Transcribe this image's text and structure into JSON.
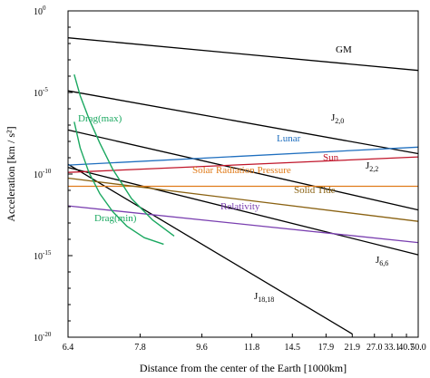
{
  "chart_data": {
    "type": "line",
    "x_scale": "reciprocal",
    "y_scale": "log",
    "xlabel": "Distance from the center of the Earth [1000km]",
    "ylabel": "Acceleration [km / s²]",
    "xlim": [
      6.4,
      50.0
    ],
    "ylim_exponent": [
      -20,
      0
    ],
    "x_ticks": [
      "6.4",
      "7.8",
      "9.6",
      "11.8",
      "14.5",
      "17.9",
      "21.9",
      "27.0",
      "33.1",
      "40.7",
      "50.0"
    ],
    "y_ticks": [
      {
        "exp": 0,
        "base": "10",
        "sup": "0"
      },
      {
        "exp": -5,
        "base": "10",
        "sup": "-5"
      },
      {
        "exp": -10,
        "base": "10",
        "sup": "-10"
      },
      {
        "exp": -15,
        "base": "10",
        "sup": "-15"
      },
      {
        "exp": -20,
        "base": "10",
        "sup": "-20"
      }
    ],
    "grid": false,
    "series": [
      {
        "name": "GM",
        "label": "GM",
        "color": "#000000",
        "x": [
          6.4,
          50.0
        ],
        "y_exp": [
          -1.65,
          -3.65
        ]
      },
      {
        "name": "J2,0",
        "label": "J",
        "sub": "2,0",
        "color": "#000000",
        "x": [
          6.4,
          50.0
        ],
        "y_exp": [
          -4.9,
          -8.75
        ]
      },
      {
        "name": "J2,2",
        "label": "J",
        "sub": "2,2",
        "color": "#000000",
        "x": [
          6.4,
          50.0
        ],
        "y_exp": [
          -7.3,
          -12.2
        ]
      },
      {
        "name": "J6,6",
        "label": "J",
        "sub": "6,6",
        "color": "#000000",
        "x": [
          6.4,
          50.0
        ],
        "y_exp": [
          -9.6,
          -14.95
        ]
      },
      {
        "name": "J18,18",
        "label": "J",
        "sub": "18,18",
        "color": "#000000",
        "x": [
          6.4,
          21.9
        ],
        "y_exp": [
          -9.4,
          -19.8
        ]
      },
      {
        "name": "Lunar",
        "label": "Lunar",
        "color": "#1f6fbf",
        "x": [
          6.4,
          50.0
        ],
        "y_exp": [
          -9.45,
          -8.35
        ]
      },
      {
        "name": "Sun",
        "label": "Sun",
        "color": "#c0152a",
        "x": [
          6.4,
          50.0
        ],
        "y_exp": [
          -9.9,
          -8.95
        ]
      },
      {
        "name": "Solar Radiation Pressure",
        "label": "Solar Radiation Pressure",
        "color": "#e07b1a",
        "x": [
          6.4,
          50.0
        ],
        "y_exp": [
          -10.75,
          -10.75
        ]
      },
      {
        "name": "Solid Tide",
        "label": "Solid Tide",
        "color": "#8a6212",
        "x": [
          6.4,
          50.0
        ],
        "y_exp": [
          -10.25,
          -12.9
        ]
      },
      {
        "name": "Relativity",
        "label": "Relativity",
        "color": "#7a3fb0",
        "x": [
          6.4,
          50.0
        ],
        "y_exp": [
          -11.95,
          -14.2
        ]
      },
      {
        "name": "Drag(max)",
        "label": "Drag(max)",
        "color": "#1aa860",
        "x": [
          6.5,
          6.6,
          6.75,
          6.95,
          7.2,
          7.6,
          8.1,
          8.7
        ],
        "y_exp": [
          -3.9,
          -5.2,
          -6.6,
          -8.1,
          -9.7,
          -11.5,
          -12.8,
          -13.8
        ]
      },
      {
        "name": "Drag(min)",
        "label": "Drag(min)",
        "color": "#1aa860",
        "x": [
          6.5,
          6.6,
          6.75,
          6.95,
          7.2,
          7.5,
          7.9,
          8.4
        ],
        "y_exp": [
          -6.8,
          -8.4,
          -9.9,
          -11.2,
          -12.3,
          -13.2,
          -13.9,
          -14.3
        ]
      }
    ]
  }
}
